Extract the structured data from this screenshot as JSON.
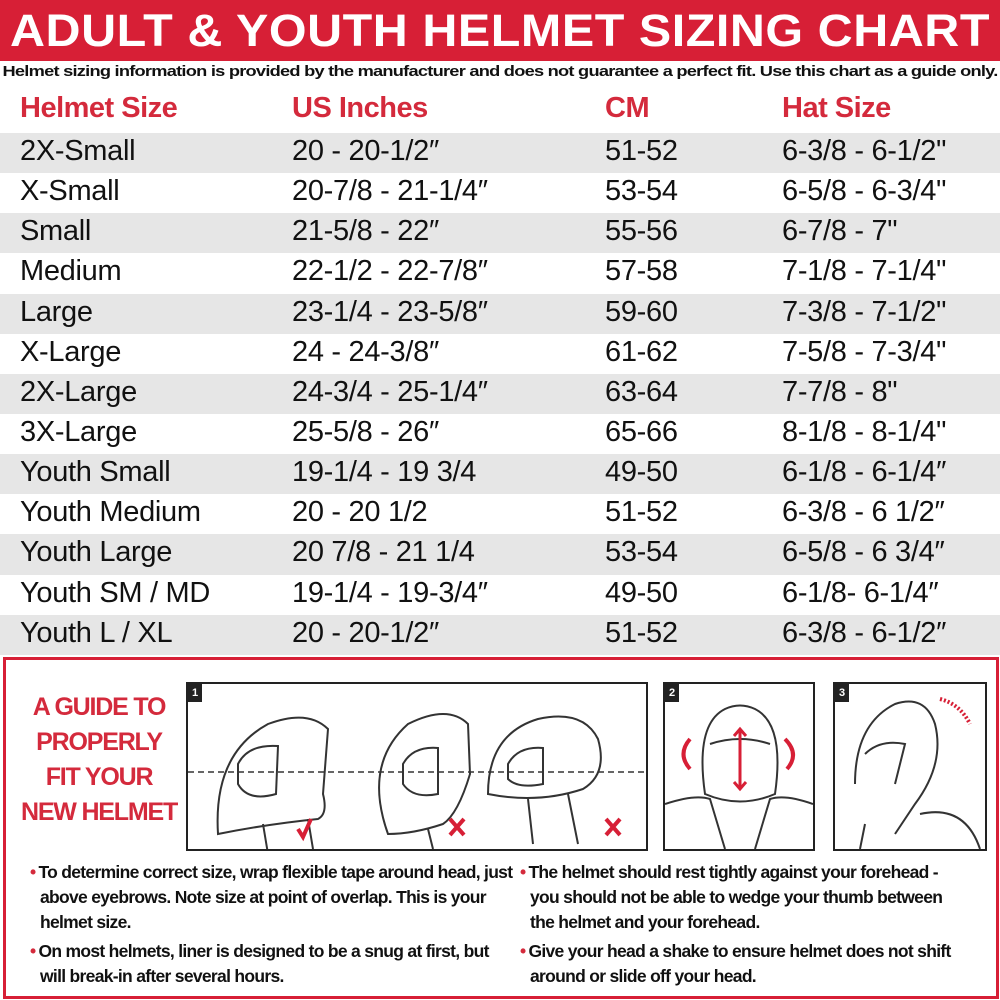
{
  "title": "ADULT & YOUTH HELMET SIZING CHART",
  "disclaimer": "Helmet sizing information is provided by the manufacturer and does not guarantee a perfect fit. Use this chart as a guide only.",
  "colors": {
    "brand_red": "#d71f36",
    "row_alt": "#e6e6e6"
  },
  "table": {
    "headers": [
      "Helmet Size",
      "US Inches",
      "CM",
      "Hat Size"
    ],
    "rows": [
      [
        "2X-Small",
        "20 - 20-1/2″",
        "51-52",
        "6-3/8 - 6-1/2\""
      ],
      [
        "X-Small",
        "20-7/8 - 21-1/4″",
        "53-54",
        "6-5/8 - 6-3/4\""
      ],
      [
        "Small",
        "21-5/8 - 22″",
        "55-56",
        "6-7/8 - 7\""
      ],
      [
        "Medium",
        "22-1/2 - 22-7/8″",
        "57-58",
        "7-1/8 - 7-1/4\""
      ],
      [
        "Large",
        "23-1/4 - 23-5/8″",
        "59-60",
        "7-3/8 - 7-1/2\""
      ],
      [
        "X-Large",
        "24 - 24-3/8″",
        "61-62",
        "7-5/8 - 7-3/4\""
      ],
      [
        "2X-Large",
        "24-3/4 - 25-1/4″",
        "63-64",
        "7-7/8 - 8\""
      ],
      [
        "3X-Large",
        "25-5/8 - 26″",
        "65-66",
        "8-1/8 - 8-1/4\""
      ],
      [
        "Youth Small",
        "19-1/4 - 19 3/4",
        "49-50",
        "6-1/8 - 6-1/4″"
      ],
      [
        "Youth Medium",
        "20 - 20 1/2",
        "51-52",
        "6-3/8 - 6 1/2″"
      ],
      [
        "Youth Large",
        "20 7/8 - 21 1/4",
        "53-54",
        "6-5/8 - 6 3/4″"
      ],
      [
        "Youth SM / MD",
        "19-1/4 - 19-3/4″",
        "49-50",
        "6-1/8- 6-1/4″"
      ],
      [
        "Youth L / XL",
        "20 - 20-1/2″",
        "51-52",
        "6-3/8 - 6-1/2″"
      ]
    ]
  },
  "guide": {
    "title_lines": [
      "A GUIDE TO",
      "PROPERLY",
      "FIT YOUR",
      "NEW HELMET"
    ],
    "panels": [
      {
        "number": "1",
        "icons": [
          "helmet-correct-fit",
          "check-icon",
          "helmet-too-low",
          "cross-icon",
          "helmet-too-high",
          "cross-icon"
        ]
      },
      {
        "number": "2",
        "icons": [
          "helmet-front-shake",
          "rotate-arrow-icon",
          "vertical-arrow-icon"
        ]
      },
      {
        "number": "3",
        "icons": [
          "helmet-side-pull",
          "curved-arrow-icon"
        ]
      }
    ],
    "bullets_left": [
      "To determine correct size, wrap flexible tape around head, just above eyebrows. Note size at point of overlap. This is your helmet size.",
      "On most helmets,  liner is designed to be a snug at first, but will break-in after several hours."
    ],
    "bullets_right": [
      "The helmet should rest tightly against your forehead - you should not be able to wedge your thumb between the helmet and your forehead.",
      "Give your head a shake to ensure helmet does not shift around or slide off your head."
    ]
  }
}
